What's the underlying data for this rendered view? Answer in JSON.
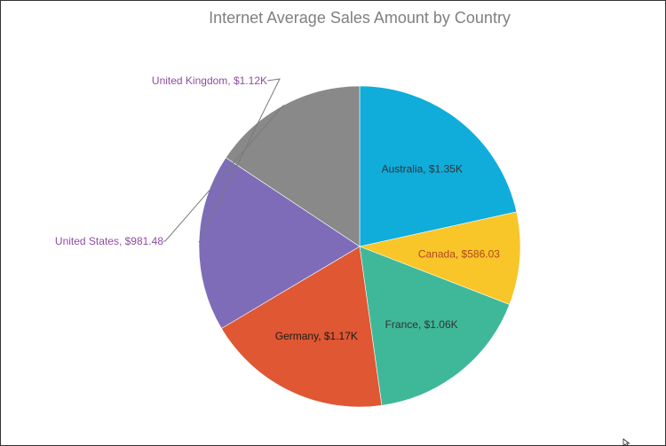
{
  "chart_data": {
    "type": "pie",
    "title": "Internet Average Sales Amount by Country",
    "slices": [
      {
        "label": "Australia, $1.35K",
        "category": "Australia",
        "value": 1350,
        "color": "#10ADDB",
        "label_color": "#333333",
        "label_position": "inside"
      },
      {
        "label": "Canada, $586.03",
        "category": "Canada",
        "value": 586.03,
        "color": "#F8C628",
        "label_color": "#B44620",
        "label_position": "inside"
      },
      {
        "label": "France, $1.06K",
        "category": "France",
        "value": 1060,
        "color": "#3FB89A",
        "label_color": "#333333",
        "label_position": "inside"
      },
      {
        "label": "Germany, $1.17K",
        "category": "Germany",
        "value": 1170,
        "color": "#DF5733",
        "label_color": "#1A1A1A",
        "label_position": "inside"
      },
      {
        "label": "United Kingdom, $1.12K",
        "category": "United Kingdom",
        "value": 1120,
        "color": "#7E6CB8",
        "label_color": "#8E4DA2",
        "label_position": "outside"
      },
      {
        "label": "United States, $981.48",
        "category": "United States",
        "value": 981.48,
        "color": "#898989",
        "label_color": "#8E4DA2",
        "label_position": "outside"
      }
    ],
    "start_angle_deg": 0,
    "direction": "clockwise"
  },
  "colors": {
    "title": "#808080",
    "border": "#333333",
    "leader_line": "#7A7A7A"
  },
  "icons": {
    "cursor": "mouse-pointer-icon"
  }
}
